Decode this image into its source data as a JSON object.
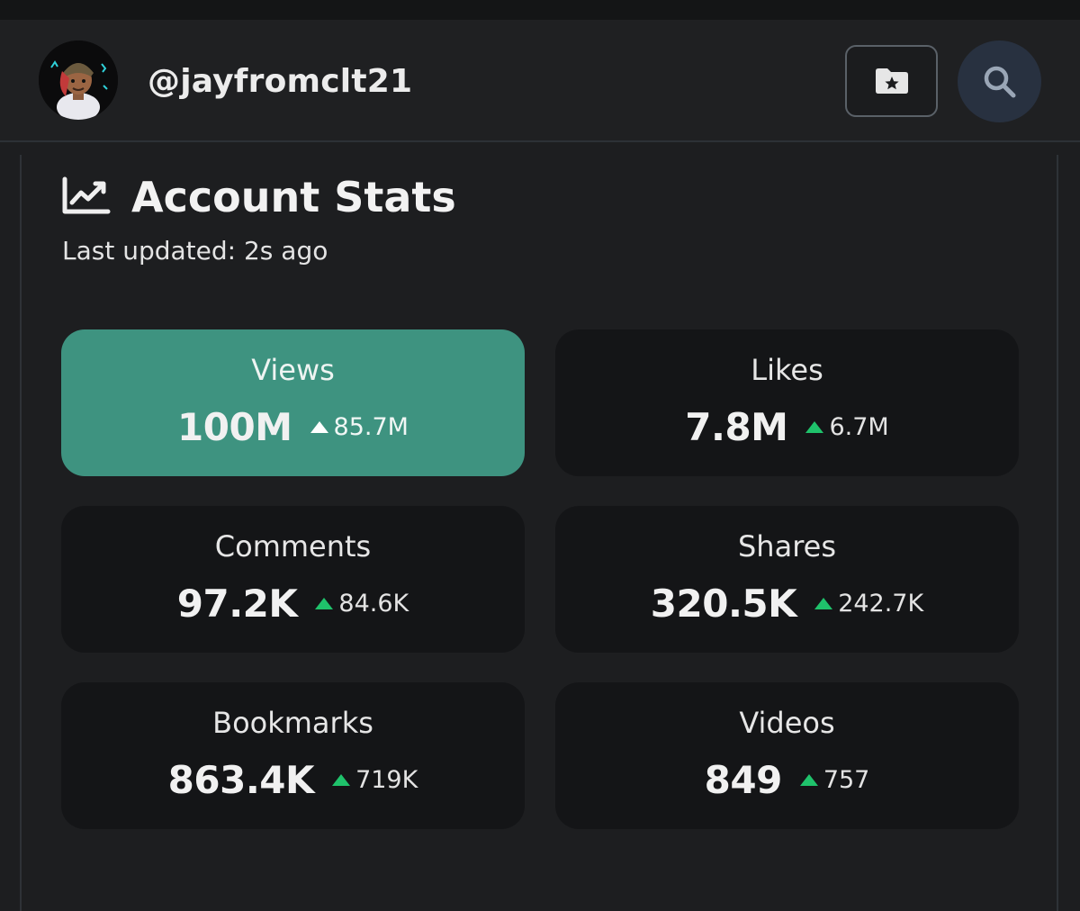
{
  "header": {
    "username": "@jayfromclt21",
    "avatar_icon": "avatar-image",
    "bookmark_icon": "folder-star-icon",
    "search_icon": "search-icon"
  },
  "stats": {
    "icon": "chart-line-icon",
    "title": "Account Stats",
    "updated": "Last updated: 2s ago",
    "cards": [
      {
        "label": "Views",
        "value": "100M",
        "delta": "85.7M",
        "active": true
      },
      {
        "label": "Likes",
        "value": "7.8M",
        "delta": "6.7M",
        "active": false
      },
      {
        "label": "Comments",
        "value": "97.2K",
        "delta": "84.6K",
        "active": false
      },
      {
        "label": "Shares",
        "value": "320.5K",
        "delta": "242.7K",
        "active": false
      },
      {
        "label": "Bookmarks",
        "value": "863.4K",
        "delta": "719K",
        "active": false
      },
      {
        "label": "Videos",
        "value": "849",
        "delta": "757",
        "active": false
      }
    ]
  },
  "colors": {
    "active_card": "#3e9380",
    "increase_arrow": "#1fc26b",
    "background": "#1d1e20"
  }
}
